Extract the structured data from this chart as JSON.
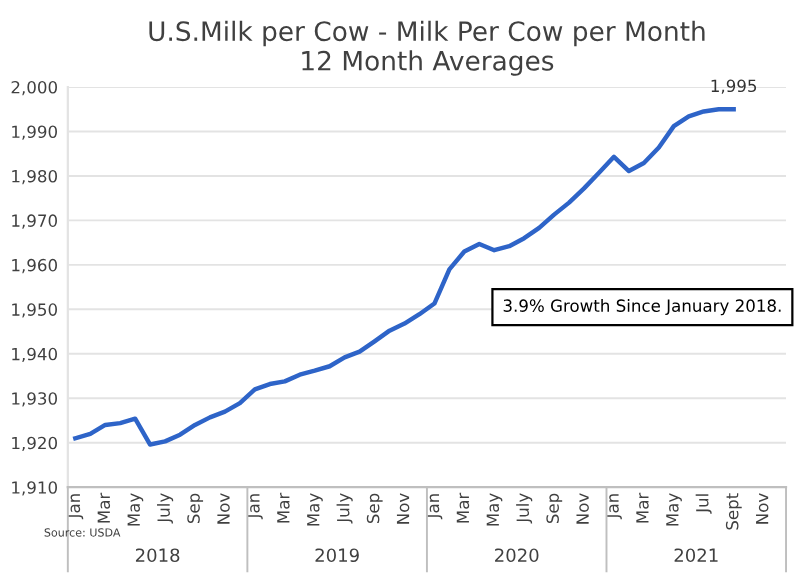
{
  "chart_data": {
    "type": "line",
    "title": "U.S.Milk per Cow - Milk Per Cow per Month\n12 Month Averages",
    "categories": [
      "Jan",
      null,
      "Mar",
      null,
      "May",
      null,
      "July",
      null,
      "Sep",
      null,
      "Nov",
      null,
      "Jan",
      null,
      "Mar",
      null,
      "May",
      null,
      "July",
      null,
      "Sep",
      null,
      "Nov",
      null,
      "Jan",
      null,
      "Mar",
      null,
      "May",
      null,
      "July",
      null,
      "Sep",
      null,
      "Nov",
      null,
      "Jan",
      null,
      "Mar",
      null,
      "May",
      null,
      "Jul",
      null,
      "Sept",
      null,
      "Nov",
      null
    ],
    "series": [
      {
        "color": "#2e64c8",
        "values": [
          1921,
          1922,
          1924,
          1924.4,
          1925.4,
          1919.6,
          1920.3,
          1921.8,
          1924,
          1925.7,
          1927,
          1928.9,
          1932,
          1933.2,
          1933.8,
          1935.3,
          1936.2,
          1937.2,
          1939.2,
          1940.5,
          1942.8,
          1945.2,
          1946.8,
          1948.9,
          1951.3,
          1959,
          1963,
          1964.7,
          1963.3,
          1964.2,
          1966,
          1968.3,
          1971.3,
          1974,
          1977.2,
          1980.7,
          1984.3,
          1981.1,
          1982.9,
          1986.4,
          1991.2,
          1993.4,
          1994.5,
          1995,
          1995,
          null,
          null,
          null
        ],
        "value_labels": [
          null,
          null,
          null,
          null,
          null,
          null,
          null,
          null,
          null,
          null,
          null,
          null,
          null,
          null,
          null,
          null,
          null,
          null,
          null,
          null,
          null,
          null,
          null,
          null,
          null,
          null,
          null,
          null,
          null,
          null,
          null,
          null,
          null,
          null,
          null,
          null,
          null,
          null,
          null,
          null,
          null,
          null,
          null,
          null,
          "1,995",
          null,
          null,
          null
        ]
      }
    ],
    "ylim": [
      1910,
      2000
    ],
    "yticks": [
      {
        "value": 1910,
        "label": "1,910"
      },
      {
        "value": 1920,
        "label": "1,920"
      },
      {
        "value": 1930,
        "label": "1,930"
      },
      {
        "value": 1940,
        "label": "1,940"
      },
      {
        "value": 1950,
        "label": "1,950"
      },
      {
        "value": 1960,
        "label": "1,960"
      },
      {
        "value": 1970,
        "label": "1,970"
      },
      {
        "value": 1980,
        "label": "1,980"
      },
      {
        "value": 1990,
        "label": "1,990"
      },
      {
        "value": 2000,
        "label": "2,000"
      }
    ],
    "grid": "y",
    "legend": false,
    "marker": "none",
    "line_style": "solid",
    "annotations": [
      "3.9% Growth Since January 2018.",
      "Source: USDA",
      "2018",
      "2019",
      "2020",
      "2021"
    ]
  }
}
